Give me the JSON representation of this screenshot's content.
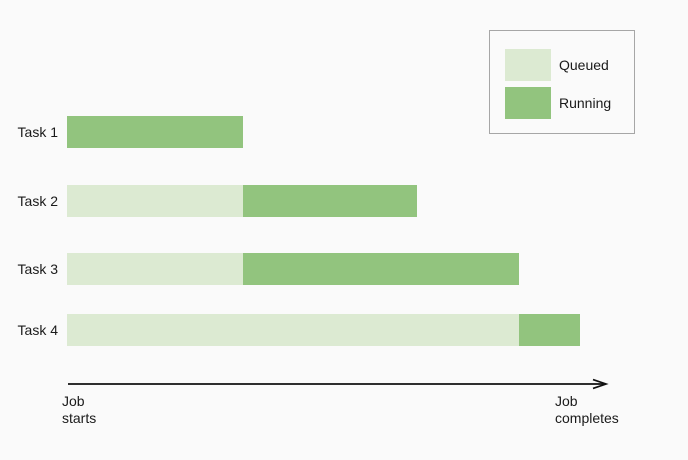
{
  "page": {
    "background": "#fafafa"
  },
  "colors": {
    "queued": "#dcead2",
    "running": "#92c47e",
    "text": "#1a1a1a",
    "axis": "#111111",
    "legend_border": "#a6a6a6"
  },
  "legend": {
    "items": [
      {
        "label": "Queued",
        "state": "queued"
      },
      {
        "label": "Running",
        "state": "running"
      }
    ]
  },
  "axis": {
    "start_label_line1": "Job",
    "start_label_line2": "starts",
    "end_label_line1": "Job",
    "end_label_line2": "completes"
  },
  "chart_data": {
    "type": "bar",
    "orientation": "horizontal-stacked-gantt",
    "title": "",
    "categories": [
      "Task 1",
      "Task 2",
      "Task 3",
      "Task 4"
    ],
    "x_axis": {
      "label_start": "Job starts",
      "label_end": "Job completes",
      "range": [
        0,
        100
      ],
      "unit": "% of job timeline",
      "ticks": "none"
    },
    "legend_position": "top-right",
    "legend_entries": [
      "Queued",
      "Running"
    ],
    "tasks": [
      {
        "label": "Task 1",
        "segments": [
          {
            "state": "running",
            "start": 0,
            "end": 32.8
          }
        ]
      },
      {
        "label": "Task 2",
        "segments": [
          {
            "state": "queued",
            "start": 0,
            "end": 32.8
          },
          {
            "state": "running",
            "start": 32.8,
            "end": 65.3
          }
        ]
      },
      {
        "label": "Task 3",
        "segments": [
          {
            "state": "queued",
            "start": 0,
            "end": 32.8
          },
          {
            "state": "running",
            "start": 32.8,
            "end": 84.3
          }
        ]
      },
      {
        "label": "Task 4",
        "segments": [
          {
            "state": "queued",
            "start": 0,
            "end": 84.3
          },
          {
            "state": "running",
            "start": 84.3,
            "end": 95.7
          }
        ]
      }
    ]
  }
}
